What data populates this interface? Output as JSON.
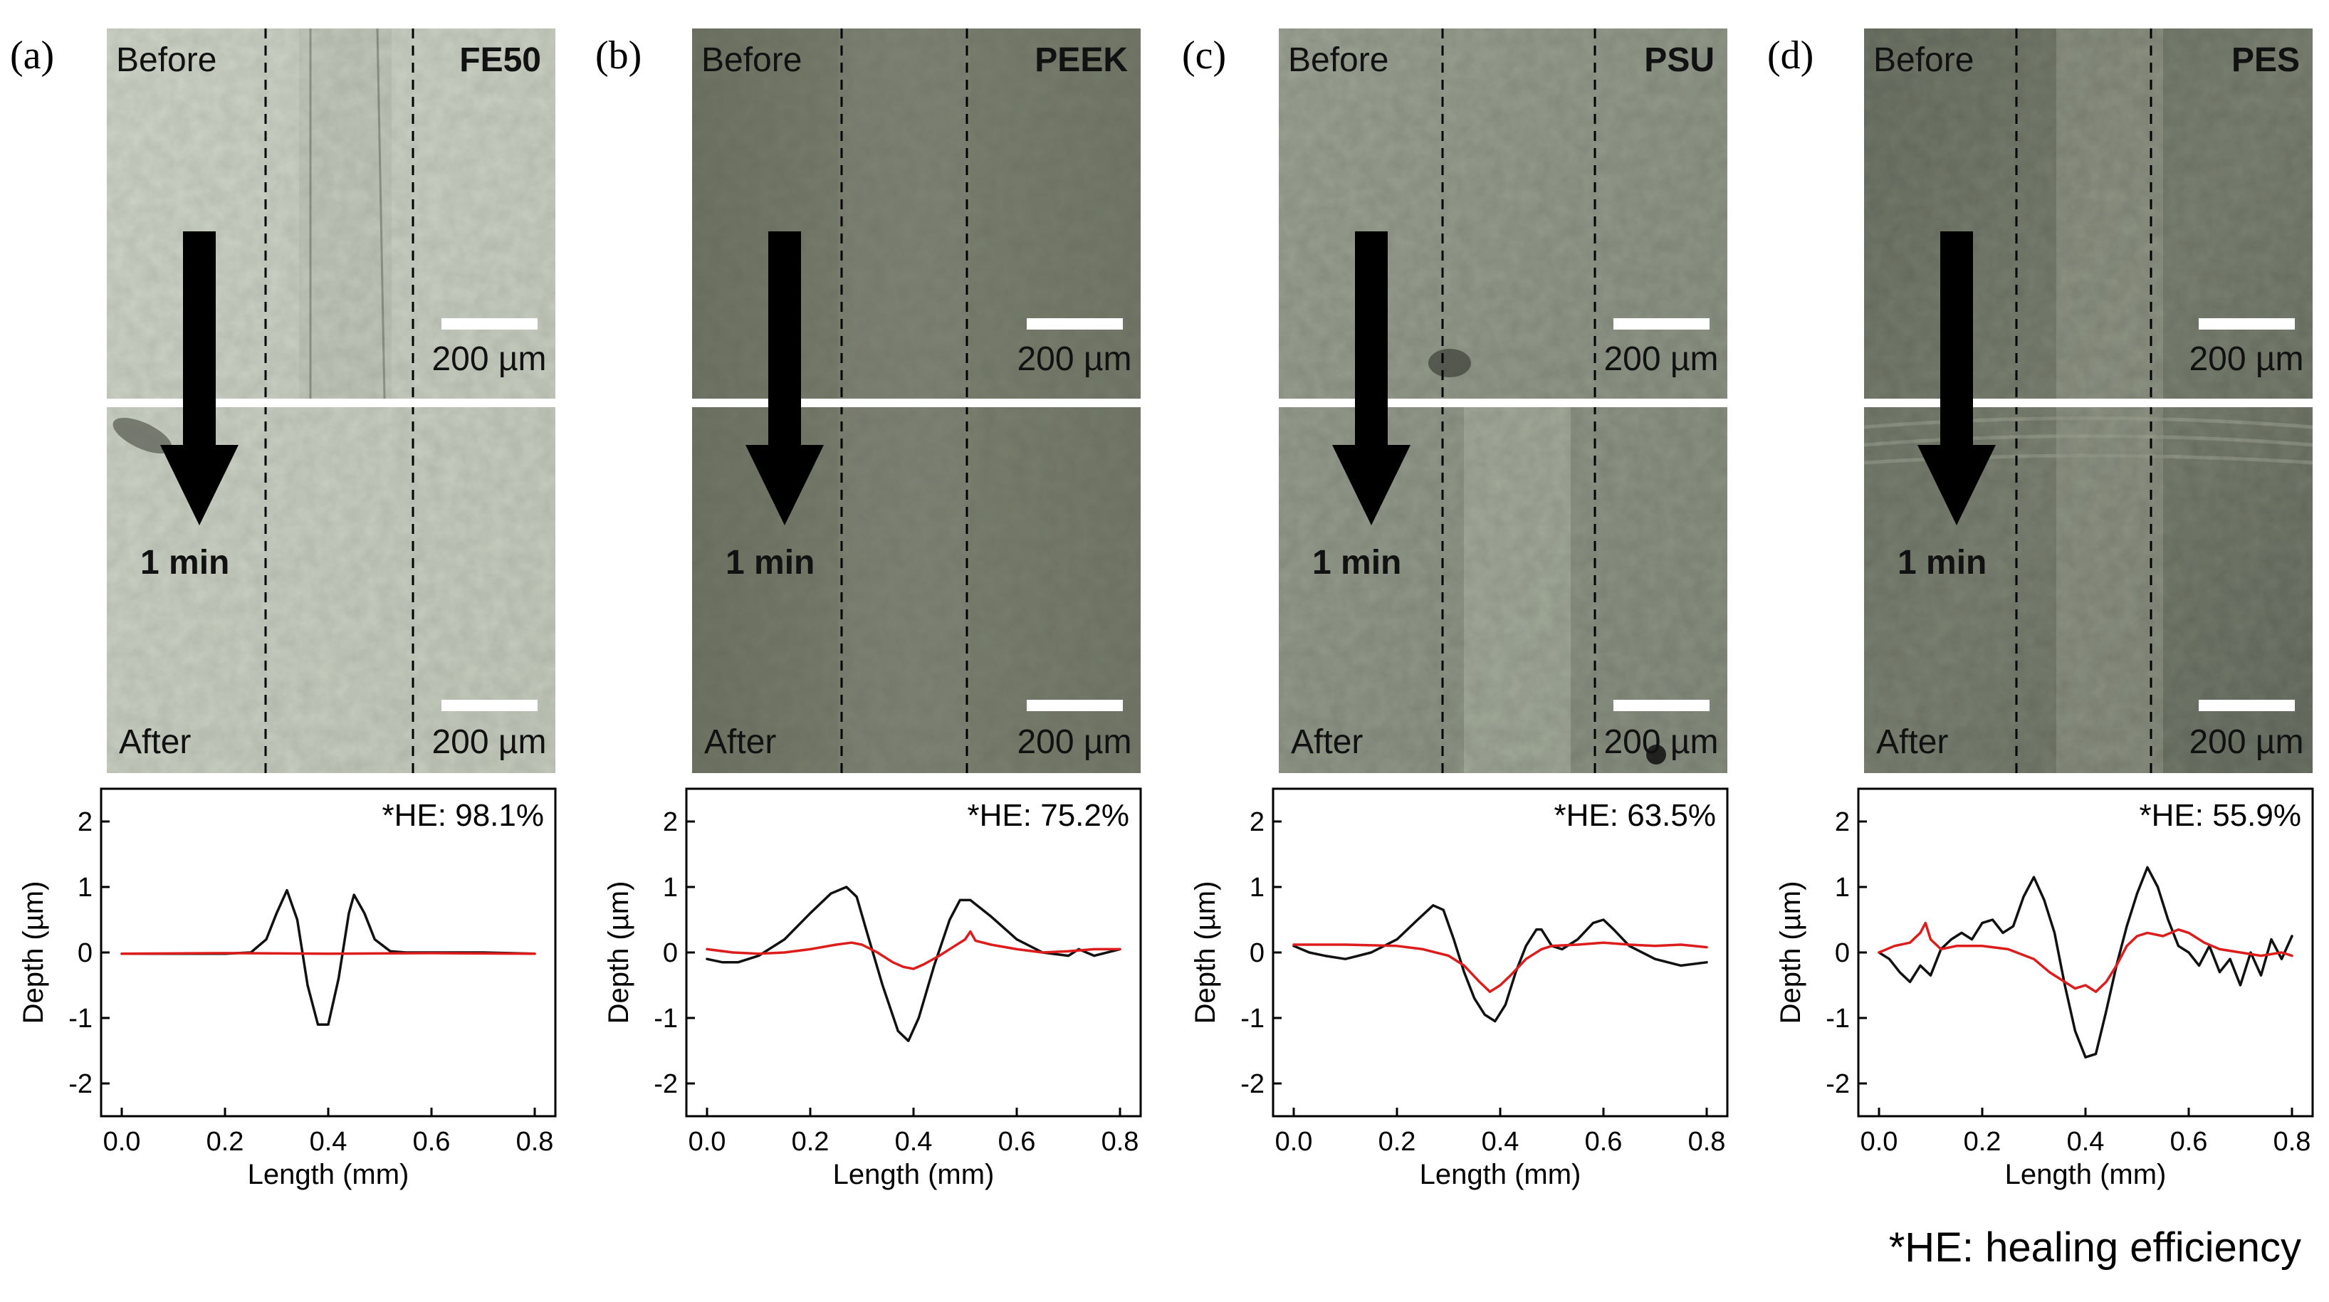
{
  "footnote": "*HE: healing efficiency",
  "colors": {
    "before_curve": "#111111",
    "after_curve": "#dd1c1c",
    "arrow": "#000000",
    "divider": "#ffffff"
  },
  "micrograph_labels": {
    "before": "Before",
    "after": "After",
    "time": "1 min",
    "scale_bar": "200 µm"
  },
  "panels": [
    {
      "label": "(a)",
      "material": "FE50",
      "he_text": "*HE: 98.1%",
      "image_tone": "light-gray-green"
    },
    {
      "label": "(b)",
      "material": "PEEK",
      "he_text": "*HE: 75.2%",
      "image_tone": "dark-olive"
    },
    {
      "label": "(c)",
      "material": "PSU",
      "he_text": "*HE: 63.5%",
      "image_tone": "mottled-gray"
    },
    {
      "label": "(d)",
      "material": "PES",
      "he_text": "*HE: 55.9%",
      "image_tone": "dark-mottled-gray"
    }
  ],
  "chart_data": [
    {
      "type": "line",
      "panel": "(a)",
      "title": "*HE: 98.1%",
      "xlabel": "Length (mm)",
      "ylabel": "Depth (µm)",
      "xlim": [
        -0.04,
        0.84
      ],
      "ylim": [
        -2.5,
        2.5
      ],
      "xticks": [
        0.0,
        0.2,
        0.4,
        0.6,
        0.8
      ],
      "xtick_labels": [
        "0.0",
        "0.2",
        "0.4",
        "0.6",
        "0.8"
      ],
      "yticks": [
        2,
        1,
        0,
        -1,
        -2
      ],
      "ytick_labels": [
        "2",
        "1",
        "0",
        "-1",
        "-2"
      ],
      "series": [
        {
          "name": "Before",
          "color": "#111111",
          "x": [
            0.0,
            0.1,
            0.2,
            0.25,
            0.28,
            0.3,
            0.32,
            0.34,
            0.36,
            0.38,
            0.4,
            0.42,
            0.44,
            0.45,
            0.47,
            0.49,
            0.52,
            0.55,
            0.6,
            0.7,
            0.8
          ],
          "y": [
            -0.02,
            -0.02,
            -0.02,
            0.0,
            0.2,
            0.6,
            0.95,
            0.5,
            -0.5,
            -1.1,
            -1.1,
            -0.4,
            0.6,
            0.88,
            0.6,
            0.2,
            0.02,
            0.0,
            0.0,
            0.0,
            -0.02
          ]
        },
        {
          "name": "After",
          "color": "#dd1c1c",
          "x": [
            0.0,
            0.2,
            0.4,
            0.6,
            0.8
          ],
          "y": [
            -0.02,
            -0.01,
            -0.02,
            -0.01,
            -0.02
          ]
        }
      ]
    },
    {
      "type": "line",
      "panel": "(b)",
      "title": "*HE: 75.2%",
      "xlabel": "Length (mm)",
      "ylabel": "Depth (µm)",
      "xlim": [
        -0.04,
        0.84
      ],
      "ylim": [
        -2.5,
        2.5
      ],
      "xticks": [
        0.0,
        0.2,
        0.4,
        0.6,
        0.8
      ],
      "xtick_labels": [
        "0.0",
        "0.2",
        "0.4",
        "0.6",
        "0.8"
      ],
      "yticks": [
        2,
        1,
        0,
        -1,
        -2
      ],
      "ytick_labels": [
        "2",
        "1",
        "0",
        "-1",
        "-2"
      ],
      "series": [
        {
          "name": "Before",
          "color": "#111111",
          "x": [
            0.0,
            0.03,
            0.06,
            0.1,
            0.15,
            0.2,
            0.24,
            0.27,
            0.29,
            0.31,
            0.34,
            0.37,
            0.39,
            0.41,
            0.44,
            0.47,
            0.49,
            0.51,
            0.55,
            0.6,
            0.65,
            0.7,
            0.72,
            0.75,
            0.8
          ],
          "y": [
            -0.1,
            -0.15,
            -0.15,
            -0.05,
            0.2,
            0.6,
            0.9,
            1.0,
            0.85,
            0.3,
            -0.5,
            -1.2,
            -1.35,
            -1.0,
            -0.2,
            0.5,
            0.8,
            0.8,
            0.55,
            0.2,
            0.0,
            -0.05,
            0.05,
            -0.05,
            0.05
          ]
        },
        {
          "name": "After",
          "color": "#dd1c1c",
          "x": [
            0.0,
            0.05,
            0.1,
            0.15,
            0.2,
            0.25,
            0.28,
            0.3,
            0.33,
            0.36,
            0.38,
            0.4,
            0.42,
            0.45,
            0.48,
            0.5,
            0.51,
            0.52,
            0.55,
            0.6,
            0.65,
            0.7,
            0.75,
            0.8
          ],
          "y": [
            0.05,
            0.0,
            -0.02,
            0.0,
            0.05,
            0.12,
            0.15,
            0.12,
            0.0,
            -0.15,
            -0.22,
            -0.25,
            -0.18,
            -0.05,
            0.1,
            0.2,
            0.32,
            0.18,
            0.12,
            0.05,
            0.0,
            0.02,
            0.05,
            0.05
          ]
        }
      ]
    },
    {
      "type": "line",
      "panel": "(c)",
      "title": "*HE: 63.5%",
      "xlabel": "Length (mm)",
      "ylabel": "Depth (µm)",
      "xlim": [
        -0.04,
        0.84
      ],
      "ylim": [
        -2.5,
        2.5
      ],
      "xticks": [
        0.0,
        0.2,
        0.4,
        0.6,
        0.8
      ],
      "xtick_labels": [
        "0.0",
        "0.2",
        "0.4",
        "0.6",
        "0.8"
      ],
      "yticks": [
        2,
        1,
        0,
        -1,
        -2
      ],
      "ytick_labels": [
        "2",
        "1",
        "0",
        "-1",
        "-2"
      ],
      "series": [
        {
          "name": "Before",
          "color": "#111111",
          "x": [
            0.0,
            0.03,
            0.06,
            0.1,
            0.15,
            0.2,
            0.24,
            0.27,
            0.29,
            0.31,
            0.33,
            0.35,
            0.37,
            0.39,
            0.41,
            0.43,
            0.45,
            0.47,
            0.48,
            0.5,
            0.52,
            0.55,
            0.58,
            0.6,
            0.62,
            0.65,
            0.7,
            0.75,
            0.8
          ],
          "y": [
            0.1,
            0.0,
            -0.05,
            -0.1,
            0.0,
            0.2,
            0.5,
            0.72,
            0.65,
            0.2,
            -0.3,
            -0.7,
            -0.95,
            -1.05,
            -0.8,
            -0.3,
            0.1,
            0.35,
            0.35,
            0.1,
            0.05,
            0.2,
            0.45,
            0.5,
            0.35,
            0.1,
            -0.1,
            -0.2,
            -0.15
          ]
        },
        {
          "name": "After",
          "color": "#dd1c1c",
          "x": [
            0.0,
            0.1,
            0.2,
            0.25,
            0.3,
            0.33,
            0.36,
            0.38,
            0.4,
            0.42,
            0.45,
            0.48,
            0.5,
            0.55,
            0.6,
            0.65,
            0.7,
            0.75,
            0.8
          ],
          "y": [
            0.12,
            0.12,
            0.1,
            0.05,
            -0.05,
            -0.2,
            -0.45,
            -0.6,
            -0.5,
            -0.35,
            -0.1,
            0.05,
            0.1,
            0.12,
            0.15,
            0.12,
            0.1,
            0.12,
            0.08
          ]
        }
      ]
    },
    {
      "type": "line",
      "panel": "(d)",
      "title": "*HE: 55.9%",
      "xlabel": "Length (mm)",
      "ylabel": "Depth (µm)",
      "xlim": [
        -0.04,
        0.84
      ],
      "ylim": [
        -2.5,
        2.5
      ],
      "xticks": [
        0.0,
        0.2,
        0.4,
        0.6,
        0.8
      ],
      "xtick_labels": [
        "0.0",
        "0.2",
        "0.4",
        "0.6",
        "0.8"
      ],
      "yticks": [
        2,
        1,
        0,
        -1,
        -2
      ],
      "ytick_labels": [
        "2",
        "1",
        "0",
        "-1",
        "-2"
      ],
      "series": [
        {
          "name": "Before",
          "color": "#111111",
          "x": [
            0.0,
            0.02,
            0.04,
            0.06,
            0.08,
            0.1,
            0.12,
            0.14,
            0.16,
            0.18,
            0.2,
            0.22,
            0.24,
            0.26,
            0.28,
            0.3,
            0.32,
            0.34,
            0.36,
            0.38,
            0.4,
            0.42,
            0.44,
            0.46,
            0.48,
            0.5,
            0.52,
            0.54,
            0.56,
            0.58,
            0.6,
            0.62,
            0.64,
            0.66,
            0.68,
            0.7,
            0.72,
            0.74,
            0.76,
            0.78,
            0.8
          ],
          "y": [
            0.0,
            -0.1,
            -0.3,
            -0.45,
            -0.2,
            -0.35,
            0.05,
            0.2,
            0.3,
            0.2,
            0.45,
            0.5,
            0.3,
            0.4,
            0.85,
            1.15,
            0.8,
            0.3,
            -0.5,
            -1.2,
            -1.6,
            -1.55,
            -0.9,
            -0.2,
            0.4,
            0.9,
            1.3,
            1.0,
            0.5,
            0.1,
            0.0,
            -0.2,
            0.1,
            -0.3,
            -0.1,
            -0.5,
            0.0,
            -0.35,
            0.2,
            -0.1,
            0.25
          ]
        },
        {
          "name": "After",
          "color": "#dd1c1c",
          "x": [
            0.0,
            0.03,
            0.06,
            0.08,
            0.09,
            0.1,
            0.12,
            0.15,
            0.2,
            0.25,
            0.3,
            0.33,
            0.36,
            0.38,
            0.4,
            0.42,
            0.44,
            0.46,
            0.48,
            0.5,
            0.52,
            0.55,
            0.58,
            0.6,
            0.63,
            0.66,
            0.7,
            0.74,
            0.78,
            0.8
          ],
          "y": [
            0.0,
            0.1,
            0.15,
            0.3,
            0.45,
            0.2,
            0.05,
            0.1,
            0.1,
            0.05,
            -0.1,
            -0.3,
            -0.45,
            -0.55,
            -0.5,
            -0.6,
            -0.45,
            -0.2,
            0.1,
            0.25,
            0.3,
            0.25,
            0.35,
            0.3,
            0.15,
            0.05,
            0.0,
            -0.05,
            0.0,
            -0.05
          ]
        }
      ]
    }
  ]
}
